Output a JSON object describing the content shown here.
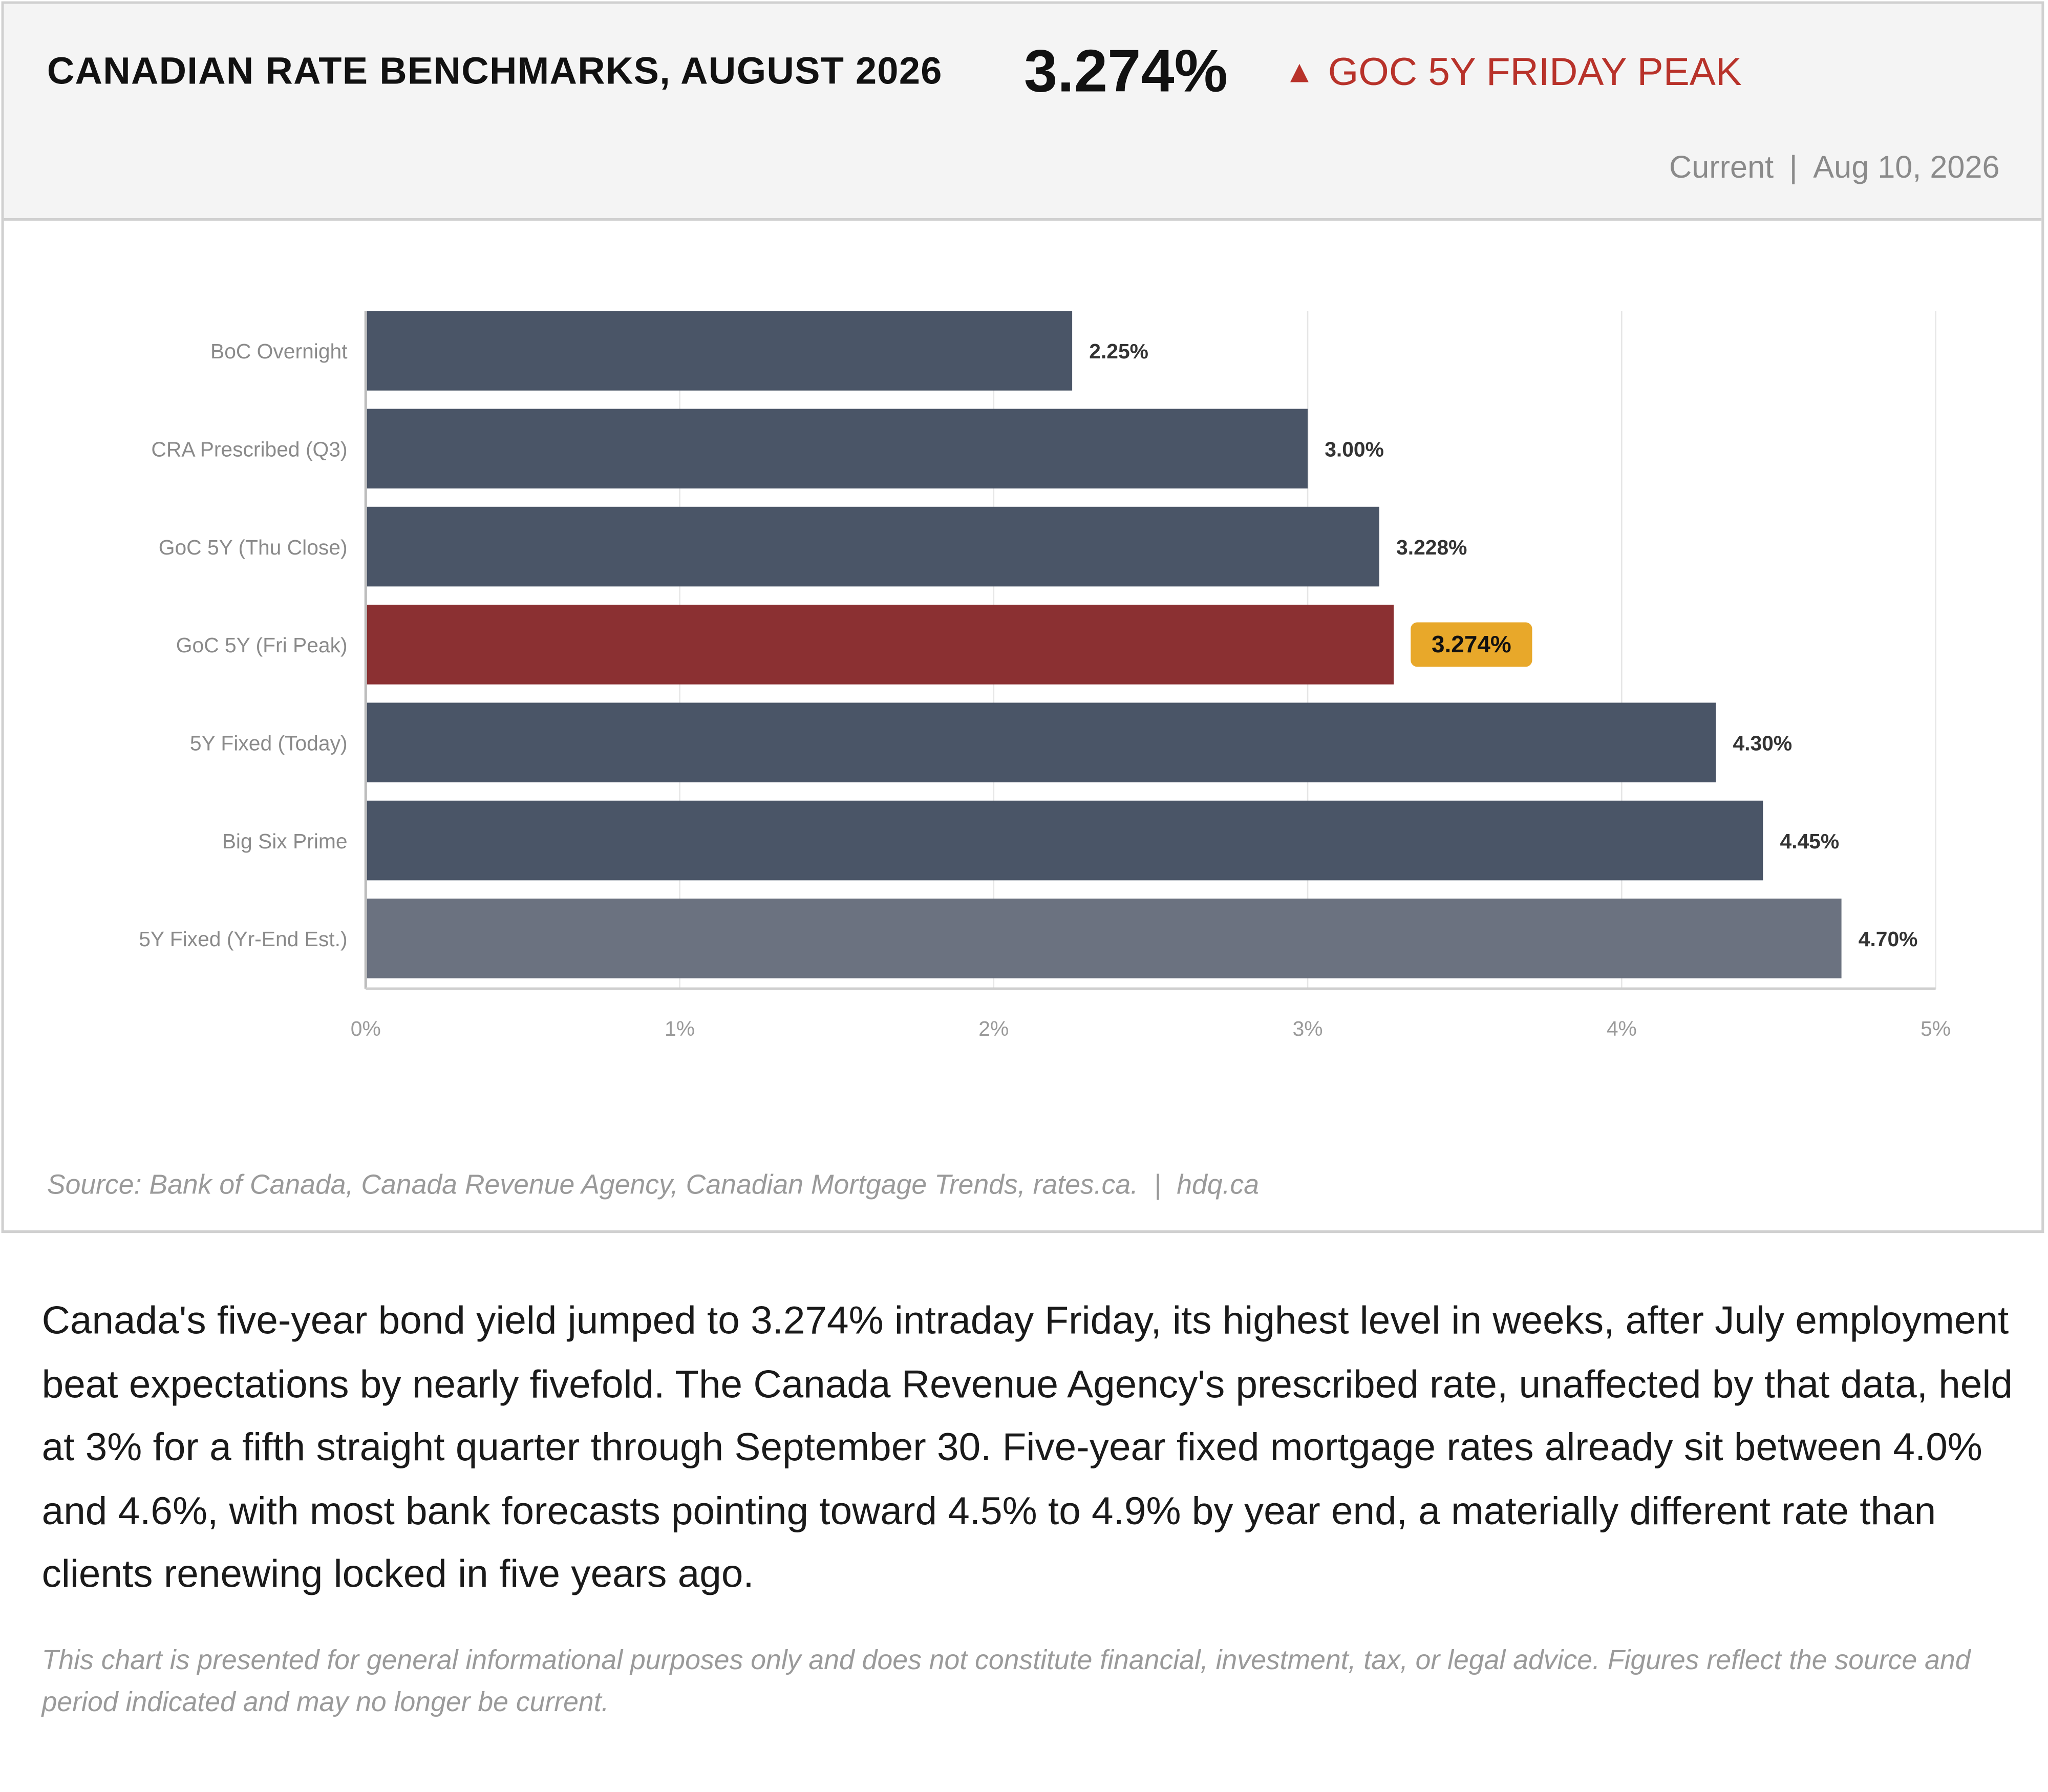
{
  "header": {
    "title": "CANADIAN RATE BENCHMARKS, AUGUST 2026",
    "headline_value": "3.274%",
    "delta_icon": "up-triangle-icon",
    "delta_label": "GOC 5Y FRIDAY PEAK",
    "status": "Current",
    "date": "Aug 10, 2026"
  },
  "colors": {
    "bar": "#4a5567",
    "highlight_bar": "#8b3032",
    "estimate_bar": "#6b7280",
    "highlight_label_bg": "#e8a82a",
    "delta_text": "#b8322a"
  },
  "chart_data": {
    "type": "bar",
    "orientation": "horizontal",
    "categories": [
      "BoC Overnight",
      "CRA Prescribed (Q3)",
      "GoC 5Y (Thu Close)",
      "GoC 5Y (Fri Peak)",
      "5Y Fixed (Today)",
      "Big Six Prime",
      "5Y Fixed (Yr-End Est.)"
    ],
    "values": [
      2.25,
      3.0,
      3.228,
      3.274,
      4.3,
      4.45,
      4.7
    ],
    "value_labels": [
      "2.25%",
      "3.00%",
      "3.228%",
      "3.274%",
      "4.30%",
      "4.45%",
      "4.70%"
    ],
    "highlight_index": 3,
    "estimate_index": 6,
    "xlim": [
      0,
      5
    ],
    "xticks": [
      0,
      1,
      2,
      3,
      4,
      5
    ],
    "xtick_labels": [
      "0%",
      "1%",
      "2%",
      "3%",
      "4%",
      "5%"
    ],
    "grid": true,
    "legend": "none"
  },
  "footer": {
    "source": "Source: Bank of Canada, Canada Revenue Agency, Canadian Mortgage Trends, rates.ca.",
    "site": "hdq.ca"
  },
  "article": {
    "paragraph": "Canada's five-year bond yield jumped to 3.274% intraday Friday, its highest level in weeks, after July employment beat expectations by nearly fivefold. The Canada Revenue Agency's prescribed rate, unaffected by that data, held at 3% for a fifth straight quarter through September 30. Five-year fixed mortgage rates already sit between 4.0% and 4.6%, with most bank forecasts pointing toward 4.5% to 4.9% by year end, a materially different rate than clients renewing locked in five years ago.",
    "disclaimer": "This chart is presented for general informational purposes only and does not constitute financial, investment, tax, or legal advice. Figures reflect the source and period indicated and may no longer be current."
  }
}
